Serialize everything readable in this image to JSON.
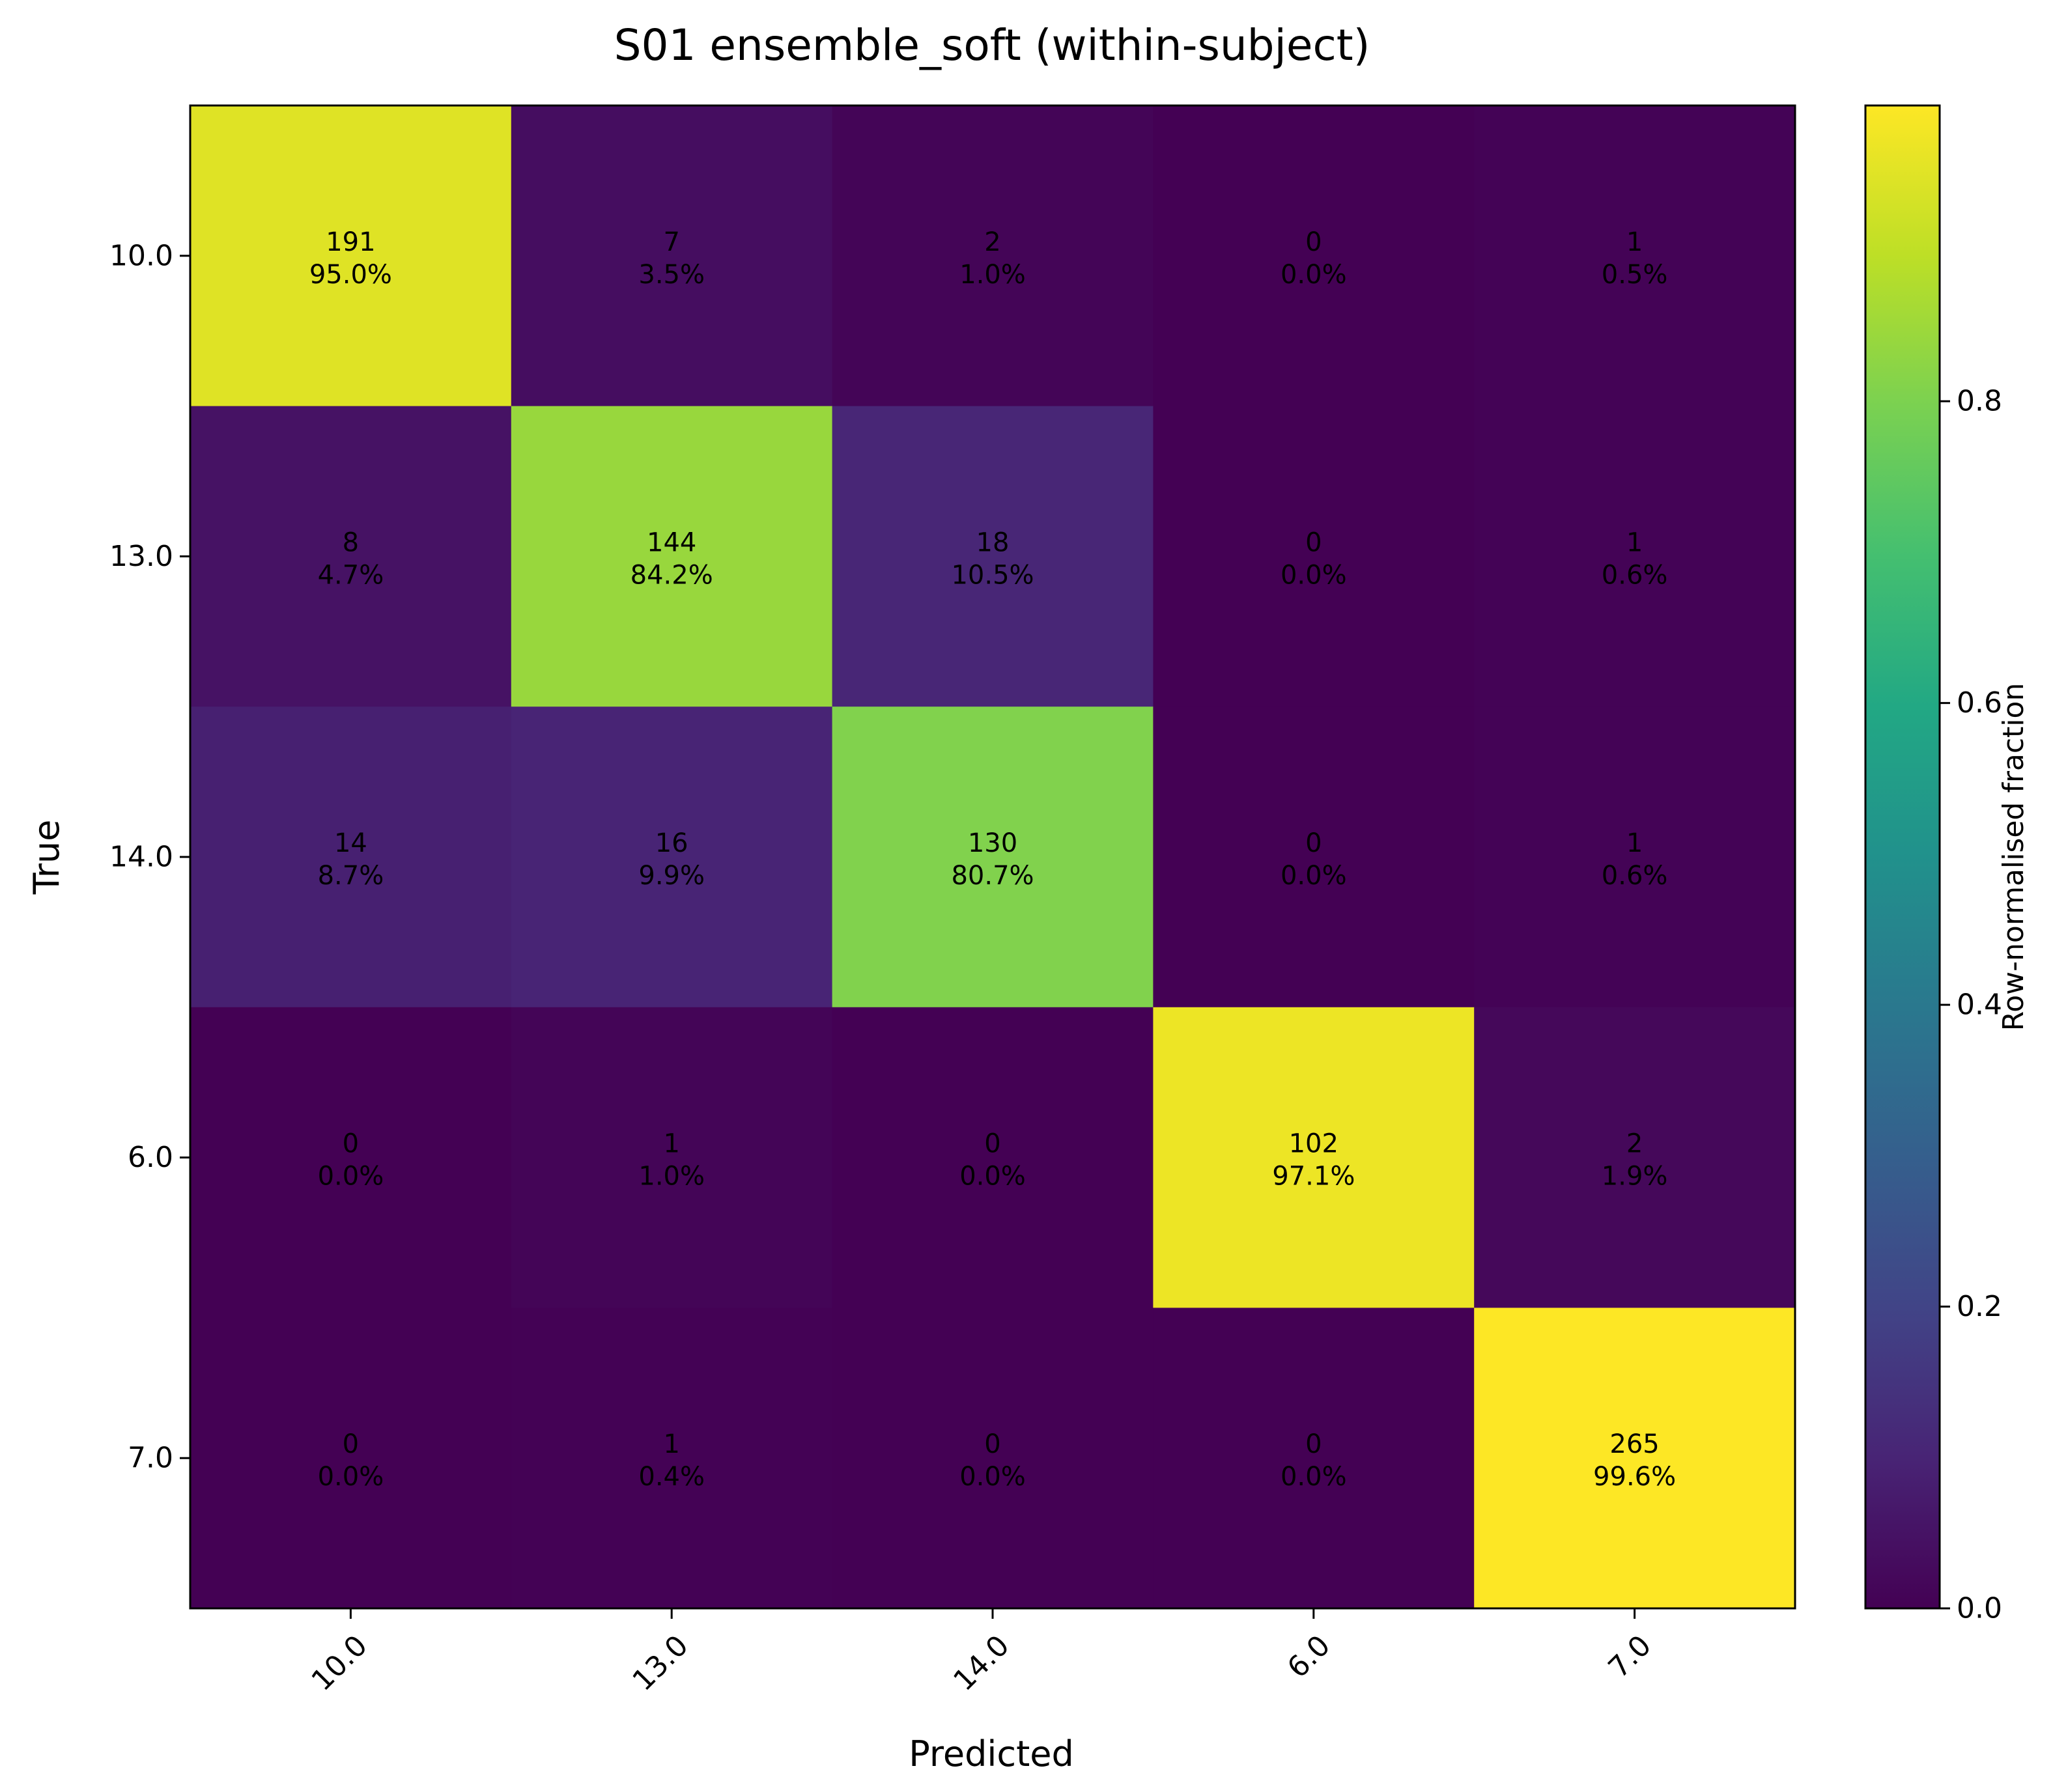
{
  "chart_data": {
    "type": "heatmap",
    "title": "S01 ensemble_soft (within-subject)",
    "xlabel": "Predicted",
    "ylabel": "True",
    "x_categories": [
      "10.0",
      "13.0",
      "14.0",
      "6.0",
      "7.0"
    ],
    "y_categories": [
      "10.0",
      "13.0",
      "14.0",
      "6.0",
      "7.0"
    ],
    "counts": [
      [
        191,
        7,
        2,
        0,
        1
      ],
      [
        8,
        144,
        18,
        0,
        1
      ],
      [
        14,
        16,
        130,
        0,
        1
      ],
      [
        0,
        1,
        0,
        102,
        2
      ],
      [
        0,
        1,
        0,
        0,
        265
      ]
    ],
    "values": [
      [
        0.95,
        0.035,
        0.01,
        0.0,
        0.005
      ],
      [
        0.047,
        0.842,
        0.105,
        0.0,
        0.006
      ],
      [
        0.087,
        0.099,
        0.807,
        0.0,
        0.006
      ],
      [
        0.0,
        0.01,
        0.0,
        0.971,
        0.019
      ],
      [
        0.0,
        0.004,
        0.0,
        0.0,
        0.996
      ]
    ],
    "cell_labels": [
      [
        [
          "191",
          "95.0%"
        ],
        [
          "7",
          "3.5%"
        ],
        [
          "2",
          "1.0%"
        ],
        [
          "0",
          "0.0%"
        ],
        [
          "1",
          "0.5%"
        ]
      ],
      [
        [
          "8",
          "4.7%"
        ],
        [
          "144",
          "84.2%"
        ],
        [
          "18",
          "10.5%"
        ],
        [
          "0",
          "0.0%"
        ],
        [
          "1",
          "0.6%"
        ]
      ],
      [
        [
          "14",
          "8.7%"
        ],
        [
          "16",
          "9.9%"
        ],
        [
          "130",
          "80.7%"
        ],
        [
          "0",
          "0.0%"
        ],
        [
          "1",
          "0.6%"
        ]
      ],
      [
        [
          "0",
          "0.0%"
        ],
        [
          "1",
          "1.0%"
        ],
        [
          "0",
          "0.0%"
        ],
        [
          "102",
          "97.1%"
        ],
        [
          "2",
          "1.9%"
        ]
      ],
      [
        [
          "0",
          "0.0%"
        ],
        [
          "1",
          "0.4%"
        ],
        [
          "0",
          "0.0%"
        ],
        [
          "0",
          "0.0%"
        ],
        [
          "265",
          "99.6%"
        ]
      ]
    ],
    "colorbar": {
      "label": "Row-normalised fraction",
      "range": [
        0.0,
        0.996
      ],
      "ticks": [
        0.0,
        0.2,
        0.4,
        0.6,
        0.8
      ],
      "tick_labels": [
        "0.0",
        "0.2",
        "0.4",
        "0.6",
        "0.8"
      ],
      "colormap": "viridis"
    },
    "grid": false
  }
}
